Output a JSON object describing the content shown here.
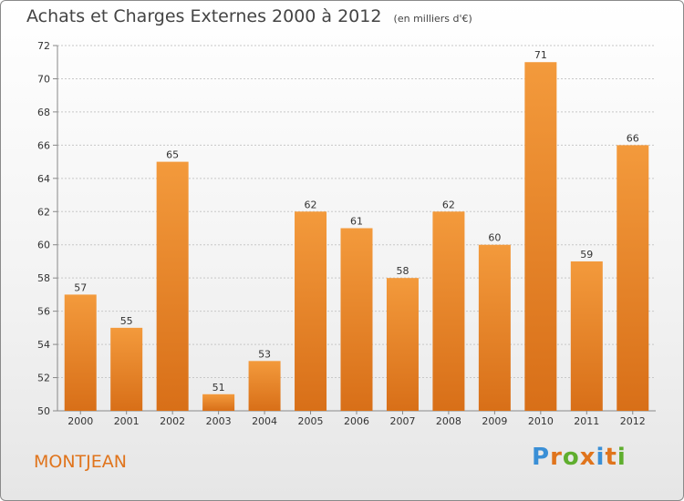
{
  "header": {
    "title": "Achats et Charges Externes 2000 à 2012",
    "subtitle": "(en milliers d'€)"
  },
  "footer": {
    "place": "MONTJEAN",
    "logo": "Proxiti",
    "logo_colors": [
      "#3a8fd6",
      "#e0741c",
      "#5fae2e",
      "#e0741c",
      "#3a8fd6",
      "#e0741c",
      "#5fae2e"
    ]
  },
  "chart_data": {
    "type": "bar",
    "title": "Achats et Charges Externes 2000 à 2012",
    "subtitle": "(en milliers d'€)",
    "categories": [
      "2000",
      "2001",
      "2002",
      "2003",
      "2004",
      "2005",
      "2006",
      "2007",
      "2008",
      "2009",
      "2010",
      "2011",
      "2012"
    ],
    "values": [
      57,
      55,
      65,
      51,
      53,
      62,
      61,
      58,
      62,
      60,
      71,
      59,
      66
    ],
    "ylim": [
      50,
      72
    ],
    "yticks": [
      50,
      52,
      54,
      56,
      58,
      60,
      62,
      64,
      66,
      68,
      70,
      72
    ],
    "grid": true,
    "bar_color": "#f39a3c",
    "bar_color_dark": "#d86f18"
  }
}
